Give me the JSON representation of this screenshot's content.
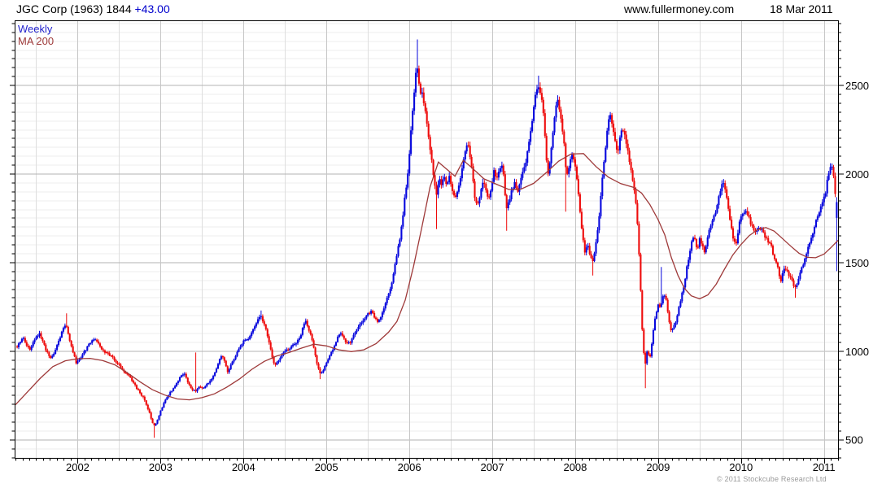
{
  "header": {
    "title": "JGC Corp (1963) 1844 ",
    "change": "+43.00",
    "website": "www.fullermoney.com",
    "date": "18 Mar 2011"
  },
  "legend": {
    "weekly": "Weekly",
    "ma": "MA 200"
  },
  "footer": {
    "copyright": "© 2011 Stockcube Research Ltd"
  },
  "chart_data": {
    "type": "candlestick",
    "title": "JGC Corp (1963) 1844 +43.00",
    "timeframe": "Weekly",
    "overlay": "MA 200",
    "legend_position": "top-left",
    "grid": "on",
    "x_axis": {
      "range": [
        2001.24,
        2011.17
      ],
      "ticks": [
        "2002",
        "2003",
        "2004",
        "2005",
        "2006",
        "2007",
        "2008",
        "2009",
        "2010",
        "2011"
      ],
      "tick_values": [
        2002,
        2003,
        2004,
        2005,
        2006,
        2007,
        2008,
        2009,
        2010,
        2011
      ],
      "minor_tick_step_years": 0.08333,
      "minor_gridline_step_years": 0.5
    },
    "y_axis": {
      "side": "right",
      "range": [
        400,
        2870
      ],
      "ticks": [
        500,
        1000,
        1500,
        2000,
        2500
      ],
      "minor_step": 50
    },
    "colors": {
      "up": "#0707dd",
      "down": "#ee0b0b",
      "ma": "#9e3939",
      "grid_minor_h": "#ededed",
      "grid_major_h": "#b3b3b3",
      "grid_minor_v": "#dedede",
      "grid_major_v": "#c6c6c6",
      "frame": "#000000"
    },
    "price_keyframes": [
      [
        2001.27,
        1030
      ],
      [
        2001.31,
        1060
      ],
      [
        2001.35,
        1075
      ],
      [
        2001.38,
        1040
      ],
      [
        2001.42,
        1010
      ],
      [
        2001.46,
        1045
      ],
      [
        2001.5,
        1085
      ],
      [
        2001.54,
        1100
      ],
      [
        2001.58,
        1055
      ],
      [
        2001.62,
        1005
      ],
      [
        2001.67,
        962
      ],
      [
        2001.71,
        988
      ],
      [
        2001.75,
        1035
      ],
      [
        2001.79,
        1085
      ],
      [
        2001.83,
        1135
      ],
      [
        2001.86,
        1152
      ],
      [
        2001.9,
        1068
      ],
      [
        2001.94,
        1005
      ],
      [
        2001.98,
        938
      ],
      [
        2002.02,
        958
      ],
      [
        2002.06,
        988
      ],
      [
        2002.1,
        1012
      ],
      [
        2002.14,
        1042
      ],
      [
        2002.18,
        1068
      ],
      [
        2002.22,
        1072
      ],
      [
        2002.26,
        1032
      ],
      [
        2002.31,
        1005
      ],
      [
        2002.36,
        988
      ],
      [
        2002.41,
        972
      ],
      [
        2002.46,
        942
      ],
      [
        2002.51,
        918
      ],
      [
        2002.56,
        888
      ],
      [
        2002.61,
        868
      ],
      [
        2002.66,
        832
      ],
      [
        2002.71,
        795
      ],
      [
        2002.76,
        758
      ],
      [
        2002.8,
        738
      ],
      [
        2002.84,
        688
      ],
      [
        2002.87,
        648
      ],
      [
        2002.9,
        602
      ],
      [
        2002.93,
        575
      ],
      [
        2002.965,
        618
      ],
      [
        2003.0,
        668
      ],
      [
        2003.04,
        708
      ],
      [
        2003.08,
        748
      ],
      [
        2003.12,
        772
      ],
      [
        2003.17,
        798
      ],
      [
        2003.21,
        832
      ],
      [
        2003.25,
        868
      ],
      [
        2003.29,
        878
      ],
      [
        2003.33,
        822
      ],
      [
        2003.38,
        788
      ],
      [
        2003.42,
        772
      ],
      [
        2003.46,
        802
      ],
      [
        2003.5,
        792
      ],
      [
        2003.54,
        806
      ],
      [
        2003.58,
        822
      ],
      [
        2003.62,
        846
      ],
      [
        2003.66,
        888
      ],
      [
        2003.7,
        942
      ],
      [
        2003.74,
        978
      ],
      [
        2003.78,
        932
      ],
      [
        2003.81,
        878
      ],
      [
        2003.85,
        926
      ],
      [
        2003.89,
        958
      ],
      [
        2003.93,
        1002
      ],
      [
        2003.97,
        1038
      ],
      [
        2004.01,
        1072
      ],
      [
        2004.05,
        1058
      ],
      [
        2004.09,
        1096
      ],
      [
        2004.13,
        1142
      ],
      [
        2004.17,
        1178
      ],
      [
        2004.21,
        1196
      ],
      [
        2004.25,
        1152
      ],
      [
        2004.29,
        1088
      ],
      [
        2004.33,
        1002
      ],
      [
        2004.37,
        922
      ],
      [
        2004.41,
        938
      ],
      [
        2004.45,
        968
      ],
      [
        2004.49,
        1000
      ],
      [
        2004.53,
        1012
      ],
      [
        2004.57,
        1022
      ],
      [
        2004.61,
        1042
      ],
      [
        2004.65,
        1058
      ],
      [
        2004.69,
        1092
      ],
      [
        2004.72,
        1142
      ],
      [
        2004.75,
        1176
      ],
      [
        2004.79,
        1122
      ],
      [
        2004.83,
        1062
      ],
      [
        2004.87,
        968
      ],
      [
        2004.9,
        908
      ],
      [
        2004.93,
        868
      ],
      [
        2004.97,
        902
      ],
      [
        2005.01,
        946
      ],
      [
        2005.05,
        986
      ],
      [
        2005.09,
        1026
      ],
      [
        2005.13,
        1076
      ],
      [
        2005.17,
        1102
      ],
      [
        2005.21,
        1072
      ],
      [
        2005.25,
        1046
      ],
      [
        2005.29,
        1056
      ],
      [
        2005.33,
        1092
      ],
      [
        2005.37,
        1132
      ],
      [
        2005.42,
        1166
      ],
      [
        2005.46,
        1186
      ],
      [
        2005.5,
        1212
      ],
      [
        2005.54,
        1226
      ],
      [
        2005.58,
        1196
      ],
      [
        2005.62,
        1166
      ],
      [
        2005.66,
        1206
      ],
      [
        2005.7,
        1256
      ],
      [
        2005.74,
        1312
      ],
      [
        2005.77,
        1352
      ],
      [
        2005.8,
        1422
      ],
      [
        2005.83,
        1492
      ],
      [
        2005.86,
        1572
      ],
      [
        2005.89,
        1652
      ],
      [
        2005.92,
        1762
      ],
      [
        2005.95,
        1892
      ],
      [
        2005.98,
        2002
      ],
      [
        2006.01,
        2182
      ],
      [
        2006.04,
        2362
      ],
      [
        2006.07,
        2522
      ],
      [
        2006.09,
        2642
      ],
      [
        2006.11,
        2552
      ],
      [
        2006.13,
        2462
      ],
      [
        2006.15,
        2492
      ],
      [
        2006.18,
        2392
      ],
      [
        2006.21,
        2302
      ],
      [
        2006.24,
        2182
      ],
      [
        2006.27,
        2072
      ],
      [
        2006.3,
        1962
      ],
      [
        2006.33,
        1882
      ],
      [
        2006.36,
        1986
      ],
      [
        2006.39,
        1932
      ],
      [
        2006.42,
        1992
      ],
      [
        2006.45,
        1942
      ],
      [
        2006.48,
        1992
      ],
      [
        2006.51,
        1932
      ],
      [
        2006.55,
        1856
      ],
      [
        2006.58,
        1906
      ],
      [
        2006.61,
        1962
      ],
      [
        2006.64,
        2052
      ],
      [
        2006.68,
        2142
      ],
      [
        2006.71,
        2182
      ],
      [
        2006.74,
        2082
      ],
      [
        2006.77,
        1952
      ],
      [
        2006.8,
        1822
      ],
      [
        2006.83,
        1846
      ],
      [
        2006.86,
        1906
      ],
      [
        2006.89,
        1966
      ],
      [
        2006.92,
        1922
      ],
      [
        2006.95,
        1856
      ],
      [
        2006.98,
        1906
      ],
      [
        2007.02,
        2026
      ],
      [
        2007.05,
        1966
      ],
      [
        2007.08,
        2022
      ],
      [
        2007.11,
        2062
      ],
      [
        2007.14,
        1986
      ],
      [
        2007.17,
        1792
      ],
      [
        2007.2,
        1846
      ],
      [
        2007.23,
        1906
      ],
      [
        2007.27,
        1946
      ],
      [
        2007.31,
        1906
      ],
      [
        2007.35,
        1986
      ],
      [
        2007.39,
        2036
      ],
      [
        2007.42,
        2112
      ],
      [
        2007.46,
        2232
      ],
      [
        2007.5,
        2372
      ],
      [
        2007.53,
        2472
      ],
      [
        2007.56,
        2502
      ],
      [
        2007.59,
        2432
      ],
      [
        2007.62,
        2332
      ],
      [
        2007.645,
        2152
      ],
      [
        2007.665,
        1982
      ],
      [
        2007.7,
        2092
      ],
      [
        2007.73,
        2232
      ],
      [
        2007.76,
        2362
      ],
      [
        2007.785,
        2422
      ],
      [
        2007.82,
        2332
      ],
      [
        2007.85,
        2242
      ],
      [
        2007.875,
        2122
      ],
      [
        2007.895,
        1986
      ],
      [
        2007.93,
        2052
      ],
      [
        2007.96,
        2112
      ],
      [
        2008.0,
        2042
      ],
      [
        2008.03,
        1932
      ],
      [
        2008.06,
        1792
      ],
      [
        2008.09,
        1642
      ],
      [
        2008.12,
        1556
      ],
      [
        2008.15,
        1612
      ],
      [
        2008.18,
        1546
      ],
      [
        2008.21,
        1512
      ],
      [
        2008.24,
        1582
      ],
      [
        2008.27,
        1682
      ],
      [
        2008.3,
        1822
      ],
      [
        2008.33,
        1992
      ],
      [
        2008.36,
        2122
      ],
      [
        2008.39,
        2282
      ],
      [
        2008.42,
        2332
      ],
      [
        2008.45,
        2282
      ],
      [
        2008.48,
        2192
      ],
      [
        2008.51,
        2122
      ],
      [
        2008.54,
        2202
      ],
      [
        2008.57,
        2262
      ],
      [
        2008.6,
        2212
      ],
      [
        2008.63,
        2142
      ],
      [
        2008.66,
        2062
      ],
      [
        2008.69,
        1962
      ],
      [
        2008.72,
        1892
      ],
      [
        2008.75,
        1732
      ],
      [
        2008.78,
        1452
      ],
      [
        2008.81,
        1112
      ],
      [
        2008.84,
        902
      ],
      [
        2008.87,
        1012
      ],
      [
        2008.9,
        962
      ],
      [
        2008.93,
        1066
      ],
      [
        2008.96,
        1182
      ],
      [
        2009.0,
        1272
      ],
      [
        2009.03,
        1242
      ],
      [
        2009.06,
        1322
      ],
      [
        2009.09,
        1312
      ],
      [
        2009.12,
        1212
      ],
      [
        2009.15,
        1112
      ],
      [
        2009.18,
        1132
      ],
      [
        2009.21,
        1162
      ],
      [
        2009.24,
        1222
      ],
      [
        2009.28,
        1312
      ],
      [
        2009.32,
        1392
      ],
      [
        2009.35,
        1482
      ],
      [
        2009.38,
        1562
      ],
      [
        2009.41,
        1632
      ],
      [
        2009.44,
        1652
      ],
      [
        2009.47,
        1562
      ],
      [
        2009.5,
        1632
      ],
      [
        2009.53,
        1602
      ],
      [
        2009.56,
        1562
      ],
      [
        2009.6,
        1652
      ],
      [
        2009.63,
        1702
      ],
      [
        2009.66,
        1742
      ],
      [
        2009.7,
        1802
      ],
      [
        2009.73,
        1872
      ],
      [
        2009.76,
        1932
      ],
      [
        2009.79,
        1942
      ],
      [
        2009.82,
        1882
      ],
      [
        2009.85,
        1792
      ],
      [
        2009.88,
        1702
      ],
      [
        2009.91,
        1632
      ],
      [
        2009.94,
        1602
      ],
      [
        2009.97,
        1702
      ],
      [
        2010.0,
        1762
      ],
      [
        2010.04,
        1786
      ],
      [
        2010.08,
        1782
      ],
      [
        2010.12,
        1722
      ],
      [
        2010.16,
        1676
      ],
      [
        2010.2,
        1702
      ],
      [
        2010.24,
        1692
      ],
      [
        2010.28,
        1656
      ],
      [
        2010.32,
        1622
      ],
      [
        2010.36,
        1602
      ],
      [
        2010.4,
        1522
      ],
      [
        2010.44,
        1476
      ],
      [
        2010.48,
        1392
      ],
      [
        2010.52,
        1476
      ],
      [
        2010.55,
        1452
      ],
      [
        2010.59,
        1426
      ],
      [
        2010.62,
        1392
      ],
      [
        2010.66,
        1352
      ],
      [
        2010.7,
        1422
      ],
      [
        2010.74,
        1482
      ],
      [
        2010.78,
        1532
      ],
      [
        2010.82,
        1612
      ],
      [
        2010.86,
        1652
      ],
      [
        2010.9,
        1732
      ],
      [
        2010.94,
        1792
      ],
      [
        2010.98,
        1842
      ],
      [
        2011.02,
        1902
      ],
      [
        2011.04,
        1962
      ],
      [
        2011.06,
        2012
      ],
      [
        2011.08,
        2056
      ],
      [
        2011.1,
        2032
      ],
      [
        2011.116,
        1992
      ],
      [
        2011.135,
        1902
      ],
      [
        2011.155,
        1844
      ]
    ],
    "spikes": [
      {
        "t": 2001.86,
        "type": "high",
        "price": 1216
      },
      {
        "t": 2002.93,
        "type": "low",
        "price": 514
      },
      {
        "t": 2003.42,
        "type": "high",
        "price": 995
      },
      {
        "t": 2004.21,
        "type": "high",
        "price": 1232
      },
      {
        "t": 2004.93,
        "type": "low",
        "price": 845
      },
      {
        "t": 2006.09,
        "type": "high",
        "price": 2762
      },
      {
        "t": 2006.33,
        "type": "low",
        "price": 1692
      },
      {
        "t": 2007.17,
        "type": "low",
        "price": 1682
      },
      {
        "t": 2007.56,
        "type": "high",
        "price": 2558
      },
      {
        "t": 2007.88,
        "type": "low",
        "price": 1790
      },
      {
        "t": 2008.21,
        "type": "low",
        "price": 1430
      },
      {
        "t": 2008.42,
        "type": "high",
        "price": 2352
      },
      {
        "t": 2008.84,
        "type": "low",
        "price": 794
      },
      {
        "t": 2009.03,
        "type": "high",
        "price": 1478
      },
      {
        "t": 2010.66,
        "type": "low",
        "price": 1304
      }
    ],
    "last_bar": {
      "open": 1755,
      "high": 1872,
      "low": 1454,
      "close": 1844
    },
    "ma_keyframes": [
      [
        2001.25,
        700
      ],
      [
        2001.4,
        775
      ],
      [
        2001.55,
        850
      ],
      [
        2001.7,
        915
      ],
      [
        2001.85,
        948
      ],
      [
        2002.0,
        960
      ],
      [
        2002.15,
        962
      ],
      [
        2002.3,
        950
      ],
      [
        2002.45,
        925
      ],
      [
        2002.6,
        880
      ],
      [
        2002.75,
        830
      ],
      [
        2002.9,
        785
      ],
      [
        2003.05,
        755
      ],
      [
        2003.2,
        733
      ],
      [
        2003.35,
        728
      ],
      [
        2003.5,
        740
      ],
      [
        2003.65,
        762
      ],
      [
        2003.8,
        800
      ],
      [
        2003.95,
        845
      ],
      [
        2004.1,
        900
      ],
      [
        2004.25,
        945
      ],
      [
        2004.4,
        975
      ],
      [
        2004.55,
        995
      ],
      [
        2004.7,
        1020
      ],
      [
        2004.85,
        1042
      ],
      [
        2005.0,
        1032
      ],
      [
        2005.15,
        1010
      ],
      [
        2005.3,
        1000
      ],
      [
        2005.45,
        1010
      ],
      [
        2005.6,
        1045
      ],
      [
        2005.75,
        1110
      ],
      [
        2005.85,
        1170
      ],
      [
        2005.95,
        1290
      ],
      [
        2006.05,
        1480
      ],
      [
        2006.15,
        1700
      ],
      [
        2006.25,
        1930
      ],
      [
        2006.35,
        2070
      ],
      [
        2006.45,
        2030
      ],
      [
        2006.55,
        1990
      ],
      [
        2006.65,
        2080
      ],
      [
        2006.75,
        2040
      ],
      [
        2006.9,
        1975
      ],
      [
        2007.05,
        1945
      ],
      [
        2007.2,
        1915
      ],
      [
        2007.35,
        1918
      ],
      [
        2007.5,
        1950
      ],
      [
        2007.65,
        2010
      ],
      [
        2007.8,
        2075
      ],
      [
        2007.95,
        2115
      ],
      [
        2008.1,
        2118
      ],
      [
        2008.25,
        2045
      ],
      [
        2008.4,
        1985
      ],
      [
        2008.55,
        1948
      ],
      [
        2008.7,
        1928
      ],
      [
        2008.8,
        1895
      ],
      [
        2008.9,
        1830
      ],
      [
        2009.0,
        1745
      ],
      [
        2009.08,
        1660
      ],
      [
        2009.16,
        1530
      ],
      [
        2009.24,
        1430
      ],
      [
        2009.32,
        1355
      ],
      [
        2009.4,
        1315
      ],
      [
        2009.5,
        1298
      ],
      [
        2009.6,
        1320
      ],
      [
        2009.7,
        1380
      ],
      [
        2009.8,
        1465
      ],
      [
        2009.9,
        1545
      ],
      [
        2010.0,
        1605
      ],
      [
        2010.1,
        1655
      ],
      [
        2010.2,
        1688
      ],
      [
        2010.3,
        1700
      ],
      [
        2010.4,
        1680
      ],
      [
        2010.5,
        1638
      ],
      [
        2010.6,
        1595
      ],
      [
        2010.7,
        1555
      ],
      [
        2010.8,
        1532
      ],
      [
        2010.9,
        1530
      ],
      [
        2011.0,
        1550
      ],
      [
        2011.08,
        1585
      ],
      [
        2011.17,
        1628
      ]
    ]
  }
}
